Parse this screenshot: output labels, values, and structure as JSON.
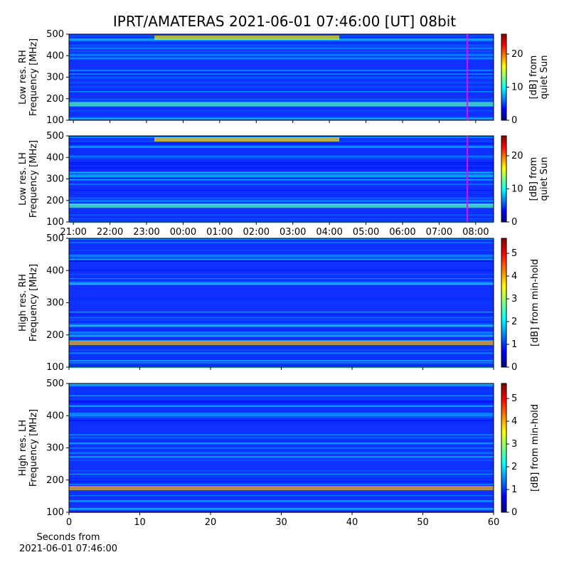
{
  "chart_data": [
    {
      "type": "heatmap",
      "title": "IPRT/AMATERAS 2021-06-01 07:46:00 [UT]   08bit",
      "xlim": [
        -0.12,
        11.49
      ],
      "xticks": [
        {
          "value": 0,
          "label": "21:00"
        },
        {
          "value": 1,
          "label": "22:00"
        },
        {
          "value": 2,
          "label": "23:00"
        },
        {
          "value": 3,
          "label": "00:00"
        },
        {
          "value": 4,
          "label": "01:00"
        },
        {
          "value": 5,
          "label": "02:00"
        },
        {
          "value": 6,
          "label": "03:00"
        },
        {
          "value": 7,
          "label": "04:00"
        },
        {
          "value": 8,
          "label": "05:00"
        },
        {
          "value": 9,
          "label": "06:00"
        },
        {
          "value": 10,
          "label": "07:00"
        },
        {
          "value": 11,
          "label": "08:00"
        }
      ],
      "marker": 10.77,
      "marker_color": "#ff00ff",
      "panels": [
        {
          "ylabel": [
            "Low res. RH",
            "Frequency [MHz]"
          ],
          "ylim": [
            100,
            500
          ],
          "yticks": [
            100,
            200,
            300,
            400,
            500
          ],
          "clim": [
            0,
            26
          ],
          "cticks": [
            0,
            10,
            20
          ],
          "clabel": [
            "[dB] from",
            "quiet Sun"
          ]
        },
        {
          "ylabel": [
            "Low res. LH",
            "Frequency [MHz]"
          ],
          "ylim": [
            100,
            500
          ],
          "yticks": [
            100,
            200,
            300,
            400,
            500
          ],
          "clim": [
            0,
            26
          ],
          "cticks": [
            0,
            10,
            20
          ],
          "clabel": [
            "[dB] from",
            "quiet Sun"
          ]
        }
      ]
    },
    {
      "type": "heatmap",
      "xlim": [
        0,
        60
      ],
      "xticks": [
        0,
        10,
        20,
        30,
        40,
        50,
        60
      ],
      "xlabel": [
        "Seconds from",
        "2021-06-01 07:46:00"
      ],
      "panels": [
        {
          "ylabel": [
            "High res. RH",
            "Frequency [MHz]"
          ],
          "ylim": [
            100,
            500
          ],
          "yticks": [
            100,
            200,
            300,
            400,
            500
          ],
          "clim": [
            0,
            5.66
          ],
          "cticks": [
            0,
            1,
            2,
            3,
            4,
            5
          ],
          "clabel": [
            "[dB] from min-hold"
          ]
        },
        {
          "ylabel": [
            "High res. LH",
            "Frequency [MHz]"
          ],
          "ylim": [
            100,
            500
          ],
          "yticks": [
            100,
            200,
            300,
            400,
            500
          ],
          "clim": [
            0,
            5.66
          ],
          "cticks": [
            0,
            1,
            2,
            3,
            4,
            5
          ],
          "clabel": [
            "[dB] from min-hold"
          ]
        }
      ]
    }
  ]
}
